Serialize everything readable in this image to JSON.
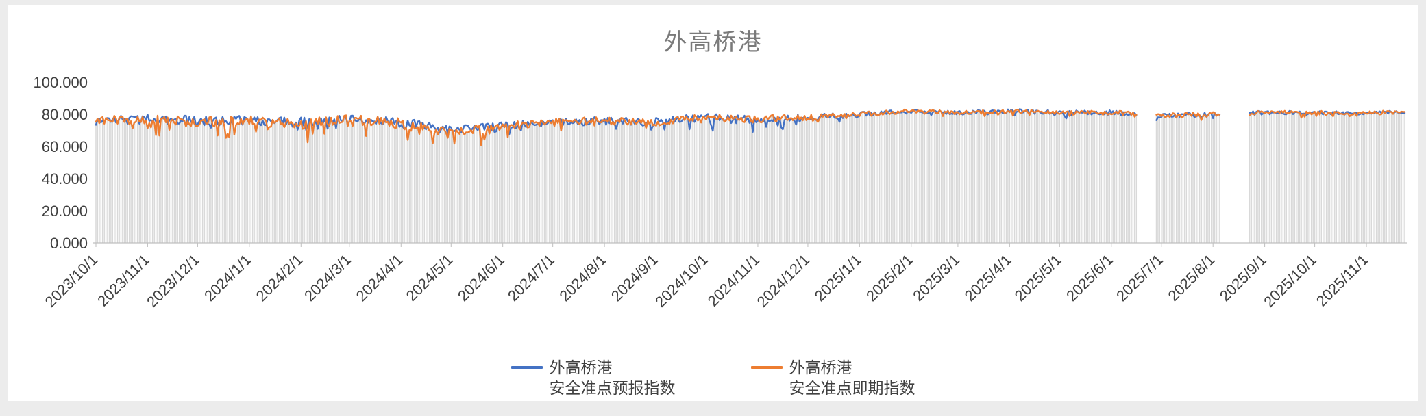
{
  "page": {
    "outer_background": "#ececec",
    "card_background": "#ffffff"
  },
  "chart_data": {
    "type": "line",
    "title": "外高桥港",
    "title_color": "#7a7a7a",
    "frequency": "daily",
    "grid": false,
    "legend_position": "bottom-center",
    "ylim": [
      0,
      100
    ],
    "y_tick_values": [
      0,
      20,
      40,
      60,
      80,
      100
    ],
    "y_tick_labels": [
      "0.000",
      "20.000",
      "40.000",
      "60.000",
      "80.000",
      "100.000"
    ],
    "x_range": [
      "2023/10/1",
      "2025/11/24"
    ],
    "x_tick_labels": [
      "2023/10/1",
      "2023/11/1",
      "2023/12/1",
      "2024/1/1",
      "2024/2/1",
      "2024/3/1",
      "2024/4/1",
      "2024/5/1",
      "2024/6/1",
      "2024/7/1",
      "2024/8/1",
      "2024/9/1",
      "2024/10/1",
      "2024/11/1",
      "2024/12/1",
      "2025/1/1",
      "2025/2/1",
      "2025/3/1",
      "2025/4/1",
      "2025/5/1",
      "2025/6/1",
      "2025/7/1",
      "2025/8/1",
      "2025/9/1",
      "2025/10/1",
      "2025/11/1"
    ],
    "gaps": [
      [
        "2025/6/17",
        "2025/6/27"
      ],
      [
        "2025/8/6",
        "2025/8/22"
      ]
    ],
    "background_bars": {
      "color": "#d9d9d9",
      "note": "dense gray daily bars from 0 up to the index value"
    },
    "axis_color": "#bfbfbf",
    "tick_label_color": "#404040",
    "series": [
      {
        "name": "外高桥港 安全准点预报指数",
        "legend_line1": "外高桥港",
        "legend_line2": "安全准点预报指数",
        "color": "#4472C4",
        "anchors": [
          [
            "2023/10/1",
            76,
            3,
            5
          ],
          [
            "2023/11/1",
            77,
            3,
            4
          ],
          [
            "2023/12/1",
            76,
            3,
            4
          ],
          [
            "2024/1/1",
            76,
            3,
            4
          ],
          [
            "2024/2/1",
            75,
            3,
            5
          ],
          [
            "2024/3/1",
            77,
            2.5,
            3
          ],
          [
            "2024/4/1",
            75,
            3,
            4
          ],
          [
            "2024/5/1",
            70,
            3,
            4
          ],
          [
            "2024/6/1",
            72,
            3,
            3
          ],
          [
            "2024/7/1",
            75,
            2.5,
            3
          ],
          [
            "2024/8/1",
            76,
            2.5,
            4
          ],
          [
            "2024/9/1",
            75,
            3,
            6
          ],
          [
            "2024/10/1",
            78,
            2.5,
            6
          ],
          [
            "2024/11/1",
            76,
            3,
            6
          ],
          [
            "2024/12/1",
            78,
            2.5,
            4
          ],
          [
            "2025/1/1",
            80,
            1.5,
            2
          ],
          [
            "2025/2/1",
            82,
            1.2,
            1.5
          ],
          [
            "2025/3/1",
            81,
            1.2,
            2
          ],
          [
            "2025/4/1",
            82,
            1.5,
            2
          ],
          [
            "2025/5/1",
            81,
            1.5,
            3
          ],
          [
            "2025/6/1",
            81,
            1.5,
            2
          ],
          [
            "2025/7/1",
            79,
            1.5,
            2
          ],
          [
            "2025/8/1",
            80,
            1.5,
            2
          ],
          [
            "2025/9/1",
            81,
            1.2,
            1.5
          ],
          [
            "2025/10/1",
            81,
            1.2,
            2
          ],
          [
            "2025/11/1",
            81,
            1.2,
            1.5
          ],
          [
            "2025/11/24",
            81,
            1.2,
            1.5
          ]
        ]
      },
      {
        "name": "外高桥港 安全准点即期指数",
        "legend_line1": "外高桥港",
        "legend_line2": "安全准点即期指数",
        "color": "#ED7D31",
        "anchors": [
          [
            "2023/10/1",
            77,
            3,
            8
          ],
          [
            "2023/11/1",
            77,
            3,
            8
          ],
          [
            "2023/12/1",
            75,
            3.5,
            12
          ],
          [
            "2024/1/1",
            76,
            3,
            10
          ],
          [
            "2024/2/1",
            74,
            3.5,
            12
          ],
          [
            "2024/3/1",
            77,
            3,
            8
          ],
          [
            "2024/4/1",
            74,
            3.5,
            14
          ],
          [
            "2024/5/1",
            68,
            3.5,
            10
          ],
          [
            "2024/6/1",
            72,
            3,
            8
          ],
          [
            "2024/7/1",
            75,
            2.5,
            5
          ],
          [
            "2024/8/1",
            76,
            2.5,
            4
          ],
          [
            "2024/9/1",
            75,
            2.5,
            4
          ],
          [
            "2024/10/1",
            78,
            2.5,
            4
          ],
          [
            "2024/11/1",
            77,
            2.5,
            5
          ],
          [
            "2024/12/1",
            78,
            2,
            4
          ],
          [
            "2025/1/1",
            80,
            1.5,
            2
          ],
          [
            "2025/2/1",
            82,
            1.2,
            1.5
          ],
          [
            "2025/3/1",
            81,
            1.2,
            2
          ],
          [
            "2025/4/1",
            82,
            1.5,
            2
          ],
          [
            "2025/5/1",
            81,
            1.5,
            3
          ],
          [
            "2025/6/1",
            81,
            1.5,
            2
          ],
          [
            "2025/7/1",
            79,
            1.5,
            3
          ],
          [
            "2025/8/1",
            80,
            1.5,
            2
          ],
          [
            "2025/9/1",
            81,
            1.2,
            2
          ],
          [
            "2025/10/1",
            81,
            1.2,
            3
          ],
          [
            "2025/11/1",
            81,
            1.2,
            2
          ],
          [
            "2025/11/24",
            81,
            1.2,
            2
          ]
        ]
      }
    ]
  }
}
